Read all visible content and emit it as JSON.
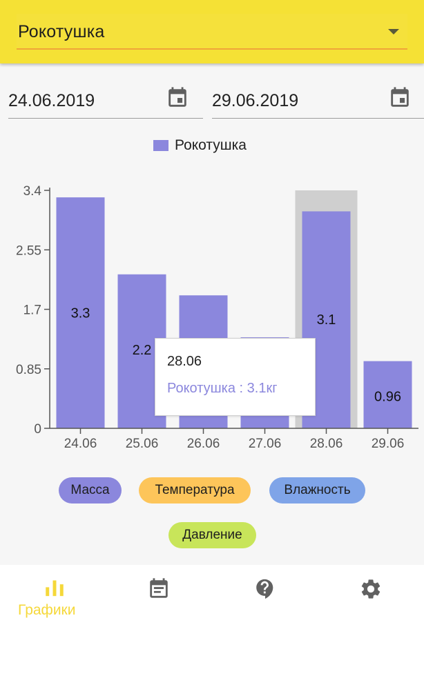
{
  "header": {
    "selected_pet": "Рокотушка"
  },
  "date_range": {
    "from": "24.06.2019",
    "to": "29.06.2019"
  },
  "legend": {
    "label": "Рокотушка",
    "color": "#8b87dd"
  },
  "chart_data": {
    "type": "bar",
    "categories": [
      "24.06",
      "25.06",
      "26.06",
      "27.06",
      "28.06",
      "29.06"
    ],
    "series": [
      {
        "name": "Рокотушка",
        "values": [
          3.3,
          2.2,
          1.9,
          1.3,
          3.1,
          0.96
        ],
        "color": "#8b87dd"
      }
    ],
    "data_labels": [
      "3.3",
      "2.2",
      "",
      "",
      "3.1",
      "0.96"
    ],
    "yticks": [
      "0",
      "0.85",
      "1.7",
      "2.55",
      "3.4"
    ],
    "ylim": [
      0,
      3.4
    ],
    "highlighted_category": "28.06",
    "legend_position": "top-center"
  },
  "tooltip": {
    "title": "28.06",
    "text": "Рокотушка : 3.1кг"
  },
  "chips": [
    {
      "label": "Масса",
      "color": "#8b87dd"
    },
    {
      "label": "Температура",
      "color": "#fdc55a"
    },
    {
      "label": "Влажность",
      "color": "#7fa4e8"
    },
    {
      "label": "Давление",
      "color": "#c8e55a"
    }
  ],
  "bottom_nav": {
    "items": [
      {
        "label": "Графики",
        "icon": "bar-chart-icon",
        "active": true
      },
      {
        "label": "",
        "icon": "calendar-notes-icon"
      },
      {
        "label": "",
        "icon": "help-icon"
      },
      {
        "label": "",
        "icon": "gear-icon"
      }
    ],
    "active_color": "#f5d83a"
  }
}
